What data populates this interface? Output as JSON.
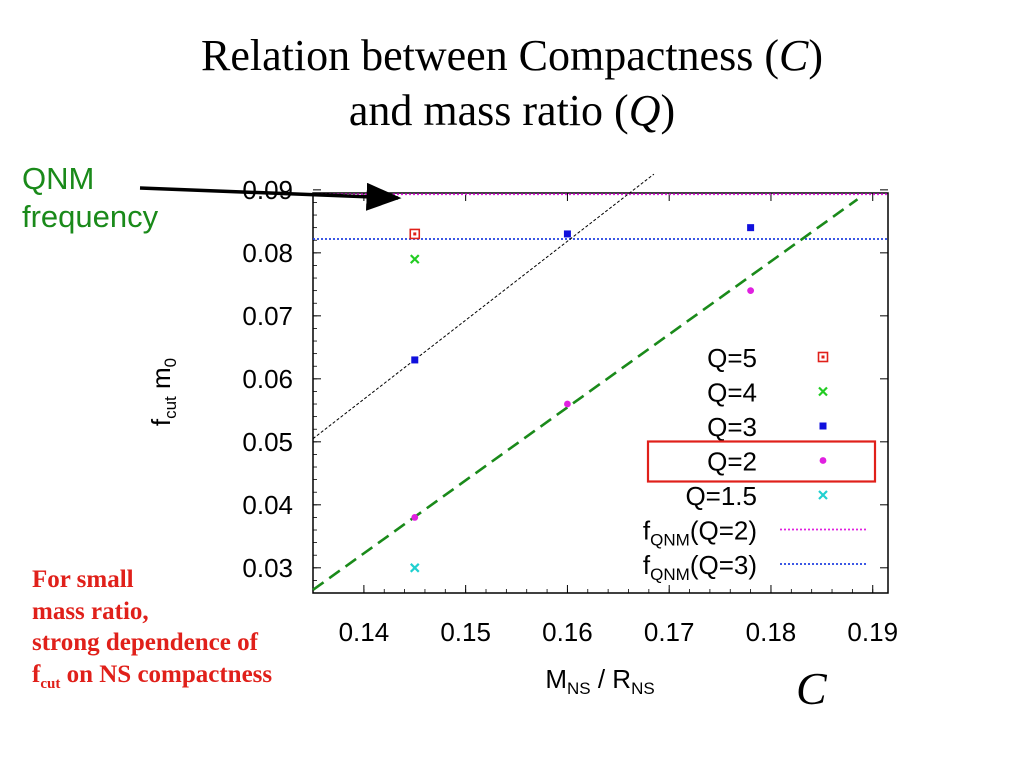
{
  "slide": {
    "title_part1": "Relation  between  Compactness (",
    "title_sym1": "C",
    "title_part2": ")",
    "title_part3": "and  mass  ratio (",
    "title_sym2": "Q",
    "title_part4": ")",
    "qnm_label_line1": "QNM",
    "qnm_label_line2": "frequency",
    "note_line1": "For  small",
    "note_line2": "mass  ratio,",
    "note_line3": "strong  dependence of",
    "note_f": "f",
    "note_sub": "cut",
    "note_rest": "  on  NS  compactness",
    "big_symbol": "C"
  },
  "chart_data": {
    "type": "scatter",
    "ylabel": "f_cut m_0",
    "xlabel": "M_NS / R_NS",
    "xlim": [
      0.135,
      0.1915
    ],
    "ylim": [
      0.026,
      0.0895
    ],
    "xticks": [
      "0.14",
      "0.15",
      "0.16",
      "0.17",
      "0.18",
      "0.19"
    ],
    "xtick_values": [
      0.14,
      0.15,
      0.16,
      0.17,
      0.18,
      0.19
    ],
    "yticks": [
      "0.03",
      "0.04",
      "0.05",
      "0.06",
      "0.07",
      "0.08",
      "0.09"
    ],
    "ytick_values": [
      0.03,
      0.04,
      0.05,
      0.06,
      0.07,
      0.08,
      0.09
    ],
    "series": [
      {
        "name": "Q=5",
        "color": "#e0201a",
        "marker": "square-open",
        "x": [
          0.145
        ],
        "y": [
          0.083
        ]
      },
      {
        "name": "Q=4",
        "color": "#22cc22",
        "marker": "cross",
        "x": [
          0.145
        ],
        "y": [
          0.079
        ]
      },
      {
        "name": "Q=3",
        "color": "#1010dd",
        "marker": "square",
        "x": [
          0.145,
          0.16,
          0.178
        ],
        "y": [
          0.063,
          0.083,
          0.084
        ]
      },
      {
        "name": "Q=2",
        "color": "#e020e0",
        "marker": "circle",
        "x": [
          0.145,
          0.16,
          0.178
        ],
        "y": [
          0.038,
          0.056,
          0.074
        ]
      },
      {
        "name": "Q=1.5",
        "color": "#20d0d0",
        "marker": "cross",
        "x": [
          0.145
        ],
        "y": [
          0.03
        ]
      }
    ],
    "reference_lines": [
      {
        "name_base": "f",
        "name_sub": "QNM",
        "name_rest": "(Q=2)",
        "color": "#e020e0",
        "y": 0.0893
      },
      {
        "name_base": "f",
        "name_sub": "QNM",
        "name_rest": "(Q=3)",
        "color": "#2040e0",
        "y": 0.0822
      }
    ],
    "fit_lines": [
      {
        "color": "#1a8a1a",
        "style": "dashed",
        "x": [
          0.135,
          0.1885
        ],
        "y": [
          0.0265,
          0.0885
        ]
      },
      {
        "color": "#000000",
        "style": "dotted",
        "x": [
          0.135,
          0.1685
        ],
        "y": [
          0.0505,
          0.0925
        ]
      }
    ],
    "legend": "bottom-right",
    "highlighted_legend_entry": "Q=2",
    "grid": false
  }
}
